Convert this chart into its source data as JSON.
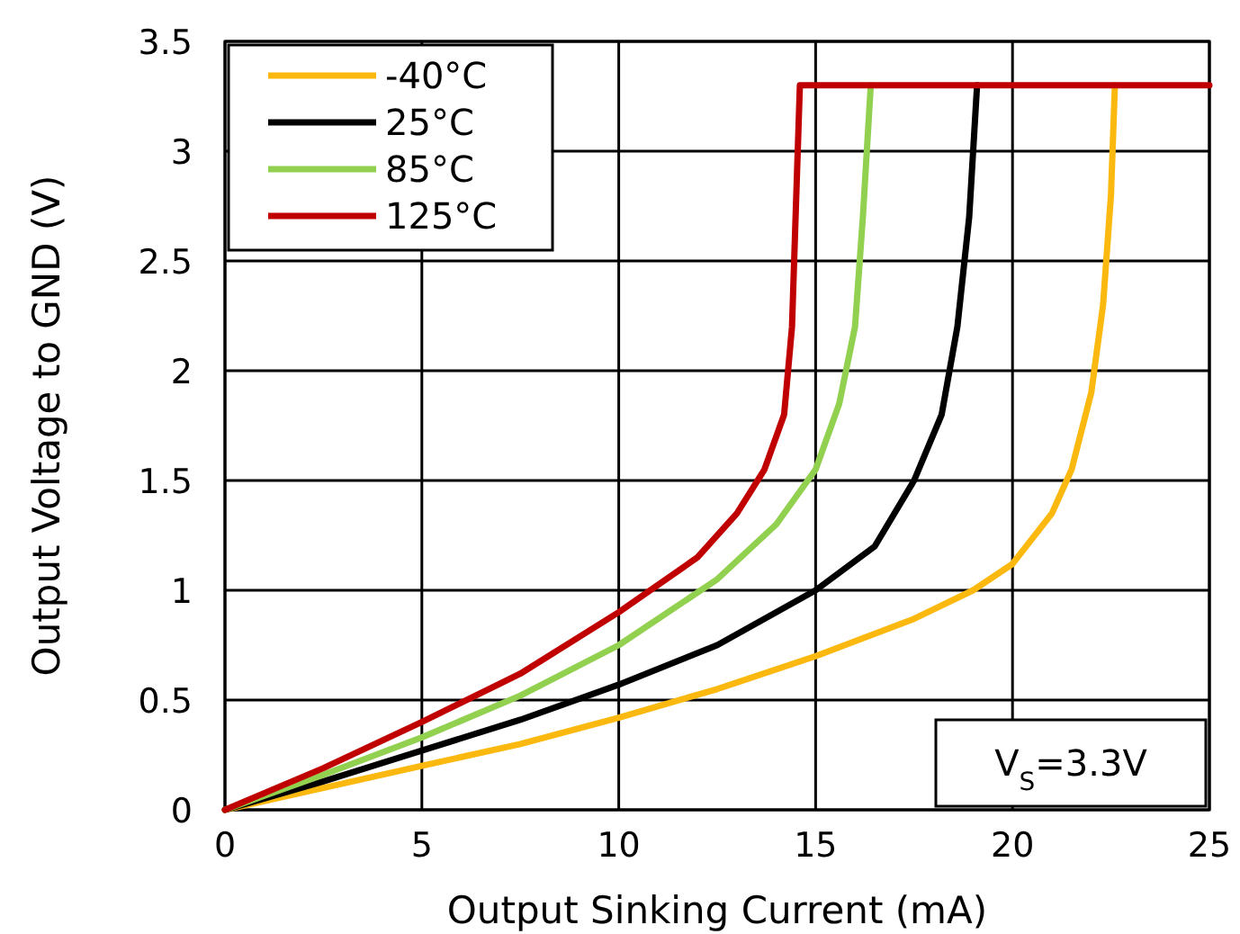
{
  "chart_data": {
    "type": "line",
    "xlabel": "Output Sinking Current (mA)",
    "ylabel": "Output Voltage to GND (V)",
    "xlim": [
      0,
      25
    ],
    "xticks": [
      0,
      5,
      10,
      15,
      20,
      25
    ],
    "ylim": [
      0,
      3.5
    ],
    "yticks": [
      0,
      0.5,
      1,
      1.5,
      2,
      2.5,
      3,
      3.5
    ],
    "grid": true,
    "legend": "top left",
    "marker": "none",
    "line_style": "solid",
    "annotations": [
      "V$_{S}$=3.3V"
    ],
    "series": [
      {
        "name": "-40°C",
        "color": "#fbb80f",
        "x": [
          0,
          2.5,
          5,
          7.5,
          10,
          12.5,
          15,
          17.5,
          19,
          20,
          21,
          21.5,
          22,
          22.3,
          22.5,
          22.6
        ],
        "values": [
          0,
          0.1,
          0.2,
          0.3,
          0.42,
          0.55,
          0.7,
          0.87,
          1.0,
          1.12,
          1.35,
          1.55,
          1.9,
          2.3,
          2.8,
          3.3
        ]
      },
      {
        "name": "25°C",
        "color": "#000000",
        "x": [
          0,
          2.5,
          5,
          7.5,
          10,
          12.5,
          15,
          16.5,
          17.5,
          18.2,
          18.6,
          18.9,
          19.1
        ],
        "values": [
          0,
          0.13,
          0.27,
          0.41,
          0.57,
          0.75,
          1.0,
          1.2,
          1.5,
          1.8,
          2.2,
          2.7,
          3.3
        ]
      },
      {
        "name": "85°C",
        "color": "#92d050",
        "x": [
          0,
          2.5,
          5,
          7.5,
          10,
          12.5,
          14,
          15,
          15.6,
          16,
          16.2,
          16.4
        ],
        "values": [
          0,
          0.16,
          0.33,
          0.52,
          0.75,
          1.05,
          1.3,
          1.55,
          1.85,
          2.2,
          2.7,
          3.3
        ]
      },
      {
        "name": "125°C",
        "color": "#c00000",
        "x": [
          0,
          2.5,
          5,
          7.5,
          10,
          12,
          13,
          13.7,
          14.2,
          14.4,
          14.6,
          25
        ],
        "values": [
          0,
          0.19,
          0.4,
          0.62,
          0.9,
          1.15,
          1.35,
          1.55,
          1.8,
          2.2,
          3.3,
          3.3
        ]
      }
    ]
  }
}
